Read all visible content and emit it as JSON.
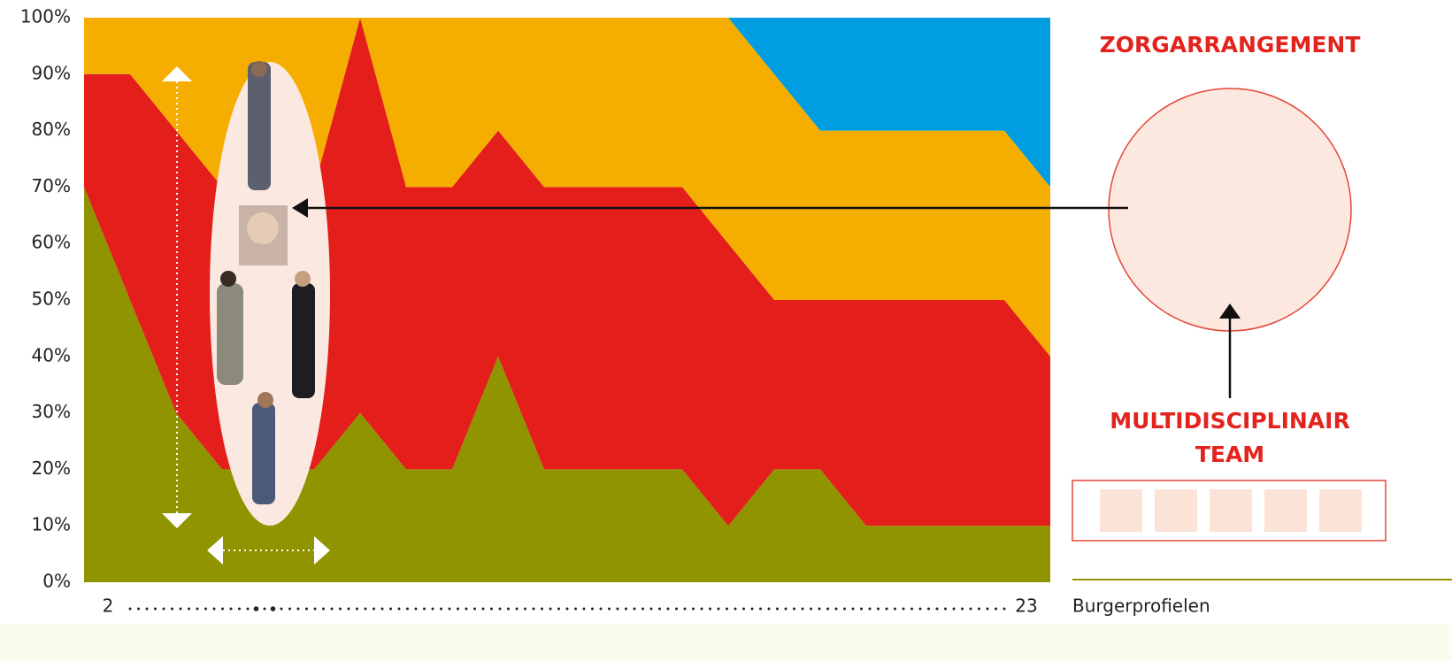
{
  "chart_data": {
    "type": "stacked-area",
    "x": [
      2,
      3,
      4,
      5,
      6,
      7,
      8,
      9,
      10,
      11,
      12,
      13,
      14,
      15,
      16,
      17,
      18,
      19,
      20,
      21,
      22,
      23
    ],
    "xlim": [
      2,
      23
    ],
    "xticks": [
      2,
      23
    ],
    "xlabel": "Burgerprofielen",
    "ylim": [
      0,
      100
    ],
    "yticks": [
      {
        "value": 0,
        "label": "0%"
      },
      {
        "value": 10,
        "label": "10%"
      },
      {
        "value": 20,
        "label": "20%"
      },
      {
        "value": 30,
        "label": "30%"
      },
      {
        "value": 40,
        "label": "40%"
      },
      {
        "value": 50,
        "label": "50%"
      },
      {
        "value": 60,
        "label": "60%"
      },
      {
        "value": 70,
        "label": "70%"
      },
      {
        "value": 80,
        "label": "80%"
      },
      {
        "value": 90,
        "label": "90%"
      },
      {
        "value": 100,
        "label": "100%"
      }
    ],
    "series": [
      {
        "color": "#8f9400",
        "values": [
          70,
          50,
          30,
          20,
          20,
          20,
          30,
          20,
          20,
          40,
          20,
          20,
          20,
          20,
          10,
          20,
          20,
          10,
          10,
          10,
          10,
          10
        ]
      },
      {
        "color": "#e31e1b",
        "values": [
          20,
          40,
          50,
          50,
          50,
          50,
          70,
          50,
          50,
          40,
          50,
          50,
          50,
          50,
          50,
          30,
          30,
          40,
          40,
          40,
          40,
          30
        ]
      },
      {
        "color": "#f5ae00",
        "values": [
          10,
          10,
          20,
          30,
          30,
          30,
          0,
          30,
          30,
          20,
          30,
          30,
          30,
          30,
          40,
          40,
          30,
          30,
          30,
          30,
          30,
          30
        ]
      },
      {
        "color": "#009ee0",
        "values": [
          0,
          0,
          0,
          0,
          0,
          0,
          0,
          0,
          0,
          0,
          0,
          0,
          0,
          0,
          0,
          10,
          20,
          20,
          20,
          20,
          20,
          30
        ]
      }
    ],
    "annotations": [
      "ZORGARRANGEMENT",
      "MULTIDISCIPLINAIR",
      "TEAM"
    ]
  }
}
